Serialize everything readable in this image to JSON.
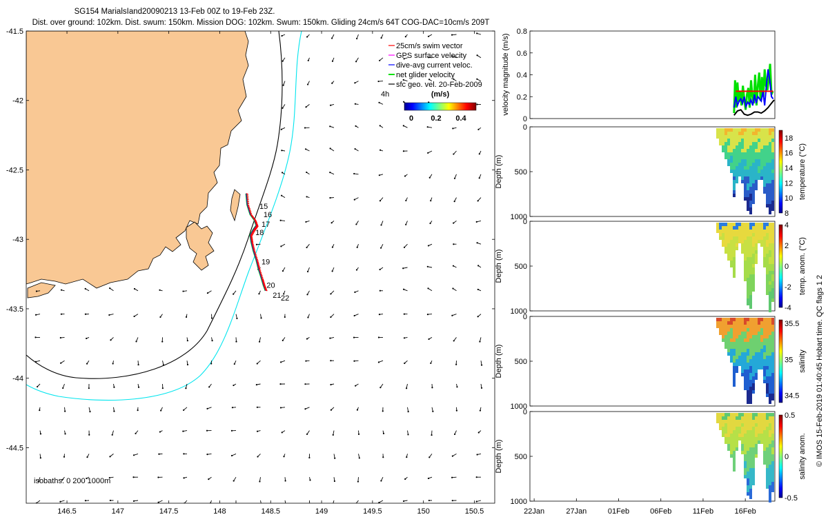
{
  "header": {
    "line1": "SG154 MarialsIand20090213 13-Feb 00Z to 19-Feb 23Z.",
    "line2": "Dist. over ground: 102km. Dist. swum: 150km. Mission DOG: 102km. Swum: 150km. Gliding 24cm/s 64T COG-DAC=10cm/s 209T"
  },
  "credit": "© IMOS 15-Feb-2019 01:40:45 Hobart time. QC flags 1  2",
  "colors": {
    "land": "#f9c894",
    "swim_vector": "#ff0000",
    "gps_surface": "#ff00ff",
    "dive_avg": "#0000ff",
    "net_glider": "#00e000",
    "sfc_geo": "#000000",
    "isobath_200": "#000000",
    "isobath_1000": "#00e5ee"
  },
  "chart_data": [
    {
      "type": "map",
      "xlim": [
        146.1,
        150.7
      ],
      "ylim": [
        -44.9,
        -41.5
      ],
      "xticks": [
        146.5,
        147,
        147.5,
        148,
        148.5,
        149,
        149.5,
        150,
        150.5
      ],
      "xtick_labels": [
        "146.5",
        "147",
        "147.5",
        "148",
        "148.5",
        "149",
        "149.5",
        "150",
        "150.5"
      ],
      "yticks": [
        -41.5,
        -42,
        -42.5,
        -43,
        -43.5,
        -44,
        -44.5
      ],
      "ytick_labels": [
        "-41.5",
        "-42",
        "-42.5",
        "-43",
        "-43.5",
        "-44",
        "-44.5"
      ],
      "legend": [
        {
          "label": "25cm/s swim vector",
          "color": "#ff0000"
        },
        {
          "label": "GPS surface velocity",
          "color": "#ff00ff"
        },
        {
          "label": "dive-avg current veloc.",
          "color": "#0000ff"
        },
        {
          "label": "net glider velocity",
          "color": "#00e000"
        },
        {
          "label": "sfc geo. vel. 20-Feb-2009",
          "color": "#000000"
        }
      ],
      "legend_position": "top-right",
      "time_marker": "4h",
      "colorbar": {
        "title": "(m/s)",
        "ticks": [
          0,
          0.2,
          0.4
        ],
        "tick_labels": [
          "0",
          "0.2",
          "0.4"
        ],
        "range": [
          0,
          0.5
        ],
        "colormap": "jet"
      },
      "isobaths_label": "isobaths: 0   200  1000m",
      "track": [
        {
          "lon": 148.26,
          "lat": -42.67
        },
        {
          "lon": 148.27,
          "lat": -42.75
        },
        {
          "lon": 148.3,
          "lat": -42.82
        },
        {
          "lon": 148.34,
          "lat": -42.86
        },
        {
          "lon": 148.36,
          "lat": -42.9
        },
        {
          "lon": 148.33,
          "lat": -42.93
        },
        {
          "lon": 148.3,
          "lat": -42.97
        },
        {
          "lon": 148.31,
          "lat": -43.02
        },
        {
          "lon": 148.33,
          "lat": -43.08
        },
        {
          "lon": 148.36,
          "lat": -43.15
        },
        {
          "lon": 148.38,
          "lat": -43.21
        },
        {
          "lon": 148.41,
          "lat": -43.28
        },
        {
          "lon": 148.43,
          "lat": -43.33
        },
        {
          "lon": 148.45,
          "lat": -43.37
        }
      ],
      "day_labels": [
        {
          "text": "15",
          "lon": 148.39,
          "lat": -42.78
        },
        {
          "text": "16",
          "lon": 148.43,
          "lat": -42.84
        },
        {
          "text": "17",
          "lon": 148.41,
          "lat": -42.91
        },
        {
          "text": "18",
          "lon": 148.35,
          "lat": -42.97
        },
        {
          "text": "19",
          "lon": 148.41,
          "lat": -43.18
        },
        {
          "text": "20",
          "lon": 148.46,
          "lat": -43.35
        },
        {
          "text": "21",
          "lon": 148.52,
          "lat": -43.42
        },
        {
          "text": "22",
          "lon": 148.6,
          "lat": -43.44
        }
      ]
    },
    {
      "type": "line",
      "ylabel": "velocity magnitude (m/s)",
      "ylim": [
        0,
        0.8
      ],
      "yticks": [
        0,
        0.2,
        0.4,
        0.6,
        0.8
      ],
      "ytick_labels": [
        "0",
        "0.2",
        "0.4",
        "0.6",
        "0.8"
      ],
      "xlim": [
        0,
        72
      ],
      "series": [
        {
          "color": "#00e000",
          "x": [
            60,
            60.3,
            60.7,
            61,
            61.4,
            61.8,
            62.2,
            62.6,
            63,
            63.4,
            63.8,
            64.2,
            64.6,
            65,
            65.4,
            65.8,
            66.2,
            66.6,
            67,
            67.4,
            67.8,
            68.2,
            68.6,
            69,
            69.4,
            69.8,
            70.2,
            70.6,
            71,
            71.4
          ],
          "values": [
            0.05,
            0.35,
            0.1,
            0.33,
            0.15,
            0.25,
            0.12,
            0.3,
            0.18,
            0.08,
            0.22,
            0.28,
            0.1,
            0.35,
            0.2,
            0.14,
            0.4,
            0.12,
            0.3,
            0.42,
            0.16,
            0.38,
            0.2,
            0.45,
            0.3,
            0.26,
            0.36,
            0.5,
            0.22,
            0.25
          ]
        },
        {
          "color": "#0000ff",
          "x": [
            60,
            60.5,
            61,
            61.5,
            62,
            62.5,
            63,
            63.5,
            64,
            64.5,
            65,
            65.5,
            66,
            66.5,
            67,
            67.5,
            68,
            68.5,
            69,
            69.5,
            70,
            70.5,
            71,
            71.5
          ],
          "values": [
            0.1,
            0.2,
            0.12,
            0.16,
            0.18,
            0.14,
            0.2,
            0.11,
            0.15,
            0.13,
            0.17,
            0.12,
            0.22,
            0.14,
            0.2,
            0.18,
            0.16,
            0.25,
            0.12,
            0.3,
            0.45,
            0.35,
            0.2,
            0.18
          ]
        },
        {
          "color": "#ff0000",
          "x": [
            60.5,
            71.5
          ],
          "values": [
            0.25,
            0.25
          ]
        },
        {
          "color": "#000000",
          "x": [
            60,
            61,
            62,
            63,
            64,
            65,
            66,
            67,
            68,
            69,
            70,
            71,
            71.8
          ],
          "values": [
            0.03,
            0.07,
            0.08,
            0.04,
            0.03,
            0.04,
            0.06,
            0.06,
            0.05,
            0.07,
            0.1,
            0.14,
            0.17
          ]
        }
      ]
    },
    {
      "type": "heatmap",
      "ylabel": "Depth (m)",
      "colorbar_label": "temperature (°C)",
      "ylim": [
        1000,
        0
      ],
      "yticks": [
        0,
        500,
        1000
      ],
      "clim": [
        8,
        19
      ],
      "colorbar_ticks": [
        8,
        10,
        12,
        14,
        16,
        18
      ],
      "colorbar_tick_labels": [
        "8",
        "10",
        "12",
        "14",
        "16",
        "18"
      ]
    },
    {
      "type": "heatmap",
      "ylabel": "Depth (m)",
      "colorbar_label": "temp. anom. (°C)",
      "ylim": [
        1000,
        0
      ],
      "yticks": [
        0,
        500,
        1000
      ],
      "clim": [
        -4,
        4
      ],
      "colorbar_ticks": [
        -4,
        -2,
        0,
        2,
        4
      ],
      "colorbar_tick_labels": [
        "-4",
        "-2",
        "0",
        "2",
        "4"
      ]
    },
    {
      "type": "heatmap",
      "ylabel": "Depth (m)",
      "colorbar_label": "salinity",
      "ylim": [
        1000,
        0
      ],
      "yticks": [
        0,
        500,
        1000
      ],
      "clim": [
        34.4,
        35.55
      ],
      "colorbar_ticks": [
        34.5,
        35,
        35.5
      ],
      "colorbar_tick_labels": [
        "34.5",
        "35",
        "35.5"
      ]
    },
    {
      "type": "heatmap",
      "ylabel": "Depth (m)",
      "colorbar_label": "salinity anom.",
      "ylim": [
        1000,
        0
      ],
      "yticks": [
        0,
        500,
        1000
      ],
      "clim": [
        -0.5,
        0.5
      ],
      "colorbar_ticks": [
        -0.5,
        0,
        0.5
      ],
      "colorbar_tick_labels": [
        "-0.5",
        "0",
        "0.5"
      ],
      "xtick_labels": [
        "22Jan",
        "27Jan",
        "01Feb",
        "06Feb",
        "11Feb",
        "16Feb"
      ],
      "xticks": [
        0,
        5,
        10,
        15,
        20,
        25
      ]
    }
  ]
}
